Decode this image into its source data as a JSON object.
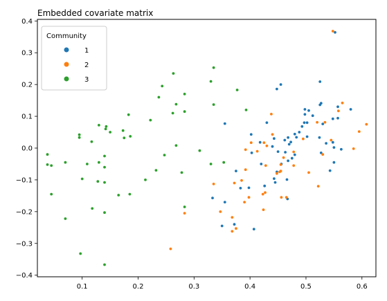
{
  "chart_data": {
    "type": "scatter",
    "title": "Embedded covariate matrix",
    "xlabel": "",
    "ylabel": "",
    "xlim": [
      0.02,
      0.625
    ],
    "ylim": [
      -0.405,
      0.405
    ],
    "x_ticks": [
      0.1,
      0.2,
      0.3,
      0.4,
      0.5,
      0.6
    ],
    "x_tick_labels": [
      "0.1",
      "0.2",
      "0.3",
      "0.4",
      "0.5",
      "0.6"
    ],
    "y_ticks": [
      -0.4,
      -0.3,
      -0.2,
      -0.1,
      0.0,
      0.1,
      0.2,
      0.3,
      0.4
    ],
    "y_tick_labels": [
      "−0.4",
      "−0.3",
      "−0.2",
      "−0.1",
      "0.0",
      "0.1",
      "0.2",
      "0.3",
      "0.4"
    ],
    "grid": false,
    "legend": {
      "title": "Community",
      "placement": "top-left",
      "entries": [
        "1",
        "2",
        "3"
      ]
    },
    "series": [
      {
        "name": "1",
        "color": "#1f77b4",
        "points": [
          [
            0.552,
            0.364
          ],
          [
            0.525,
            0.209
          ],
          [
            0.455,
            0.2
          ],
          [
            0.448,
            0.186
          ],
          [
            0.527,
            0.141
          ],
          [
            0.525,
            0.136
          ],
          [
            0.557,
            0.13
          ],
          [
            0.58,
            0.122
          ],
          [
            0.498,
            0.122
          ],
          [
            0.505,
            0.118
          ],
          [
            0.498,
            0.106
          ],
          [
            0.512,
            0.102
          ],
          [
            0.557,
            0.094
          ],
          [
            0.548,
            0.092
          ],
          [
            0.497,
            0.08
          ],
          [
            0.502,
            0.08
          ],
          [
            0.43,
            0.08
          ],
          [
            0.355,
            0.077
          ],
          [
            0.53,
            0.076
          ],
          [
            0.493,
            0.068
          ],
          [
            0.488,
            0.05
          ],
          [
            0.48,
            0.044
          ],
          [
            0.402,
            0.043
          ],
          [
            0.502,
            0.036
          ],
          [
            0.483,
            0.034
          ],
          [
            0.524,
            0.033
          ],
          [
            0.468,
            0.033
          ],
          [
            0.443,
            0.03
          ],
          [
            0.462,
            0.025
          ],
          [
            0.473,
            0.019
          ],
          [
            0.418,
            0.018
          ],
          [
            0.548,
            0.018
          ],
          [
            0.536,
            0.015
          ],
          [
            0.47,
            0.012
          ],
          [
            0.44,
            0.005
          ],
          [
            0.55,
            0.002
          ],
          [
            0.563,
            -0.004
          ],
          [
            0.45,
            -0.011
          ],
          [
            0.463,
            -0.013
          ],
          [
            0.403,
            -0.015
          ],
          [
            0.527,
            -0.015
          ],
          [
            0.48,
            -0.021
          ],
          [
            0.475,
            -0.032
          ],
          [
            0.468,
            -0.04
          ],
          [
            0.55,
            -0.045
          ],
          [
            0.456,
            -0.05
          ],
          [
            0.42,
            -0.05
          ],
          [
            0.543,
            -0.071
          ],
          [
            0.375,
            -0.072
          ],
          [
            0.448,
            -0.075
          ],
          [
            0.443,
            -0.096
          ],
          [
            0.466,
            -0.099
          ],
          [
            0.445,
            -0.108
          ],
          [
            0.426,
            -0.119
          ],
          [
            0.398,
            -0.125
          ],
          [
            0.383,
            -0.126
          ],
          [
            0.333,
            -0.157
          ],
          [
            0.467,
            -0.16
          ],
          [
            0.355,
            -0.17
          ],
          [
            0.372,
            -0.24
          ],
          [
            0.35,
            -0.245
          ],
          [
            0.407,
            -0.255
          ]
        ]
      },
      {
        "name": "2",
        "color": "#ff7f0e",
        "points": [
          [
            0.548,
            0.368
          ],
          [
            0.565,
            0.142
          ],
          [
            0.558,
            0.117
          ],
          [
            0.438,
            0.107
          ],
          [
            0.52,
            0.081
          ],
          [
            0.534,
            0.081
          ],
          [
            0.608,
            0.075
          ],
          [
            0.595,
            0.052
          ],
          [
            0.44,
            0.043
          ],
          [
            0.495,
            0.029
          ],
          [
            0.545,
            0.025
          ],
          [
            0.402,
            0.017
          ],
          [
            0.425,
            0.017
          ],
          [
            0.43,
            0.007
          ],
          [
            0.585,
            -0.002
          ],
          [
            0.392,
            -0.005
          ],
          [
            0.413,
            -0.01
          ],
          [
            0.478,
            -0.012
          ],
          [
            0.53,
            -0.02
          ],
          [
            0.46,
            -0.03
          ],
          [
            0.455,
            -0.052
          ],
          [
            0.428,
            -0.055
          ],
          [
            0.478,
            -0.055
          ],
          [
            0.392,
            -0.068
          ],
          [
            0.455,
            -0.072
          ],
          [
            0.453,
            -0.075
          ],
          [
            0.448,
            -0.08
          ],
          [
            0.505,
            -0.077
          ],
          [
            0.522,
            -0.12
          ],
          [
            0.385,
            -0.102
          ],
          [
            0.335,
            -0.113
          ],
          [
            0.427,
            -0.14
          ],
          [
            0.423,
            -0.145
          ],
          [
            0.465,
            -0.155
          ],
          [
            0.456,
            -0.155
          ],
          [
            0.372,
            -0.11
          ],
          [
            0.398,
            -0.155
          ],
          [
            0.39,
            -0.17
          ],
          [
            0.424,
            -0.194
          ],
          [
            0.283,
            -0.205
          ],
          [
            0.347,
            -0.2
          ],
          [
            0.368,
            -0.218
          ],
          [
            0.375,
            -0.253
          ],
          [
            0.368,
            -0.262
          ],
          [
            0.258,
            -0.317
          ]
        ]
      },
      {
        "name": "3",
        "color": "#2ca02c",
        "points": [
          [
            0.335,
            0.253
          ],
          [
            0.263,
            0.235
          ],
          [
            0.243,
            0.195
          ],
          [
            0.33,
            0.21
          ],
          [
            0.237,
            0.16
          ],
          [
            0.283,
            0.17
          ],
          [
            0.377,
            0.183
          ],
          [
            0.335,
            0.137
          ],
          [
            0.268,
            0.138
          ],
          [
            0.393,
            0.12
          ],
          [
            0.283,
            0.115
          ],
          [
            0.262,
            0.11
          ],
          [
            0.183,
            0.105
          ],
          [
            0.222,
            0.088
          ],
          [
            0.143,
            0.068
          ],
          [
            0.13,
            0.072
          ],
          [
            0.142,
            0.06
          ],
          [
            0.173,
            0.055
          ],
          [
            0.15,
            0.05
          ],
          [
            0.175,
            0.032
          ],
          [
            0.186,
            0.037
          ],
          [
            0.095,
            0.042
          ],
          [
            0.095,
            0.033
          ],
          [
            0.117,
            0.02
          ],
          [
            0.268,
            0.008
          ],
          [
            0.31,
            -0.008
          ],
          [
            0.038,
            -0.02
          ],
          [
            0.14,
            -0.025
          ],
          [
            0.247,
            -0.022
          ],
          [
            0.353,
            -0.045
          ],
          [
            0.07,
            -0.045
          ],
          [
            0.13,
            -0.045
          ],
          [
            0.109,
            -0.05
          ],
          [
            0.038,
            -0.052
          ],
          [
            0.33,
            -0.05
          ],
          [
            0.045,
            -0.055
          ],
          [
            0.14,
            -0.06
          ],
          [
            0.232,
            -0.07
          ],
          [
            0.278,
            -0.077
          ],
          [
            0.1,
            -0.097
          ],
          [
            0.213,
            -0.1
          ],
          [
            0.128,
            -0.105
          ],
          [
            0.14,
            -0.108
          ],
          [
            0.045,
            -0.145
          ],
          [
            0.165,
            -0.148
          ],
          [
            0.185,
            -0.145
          ],
          [
            0.118,
            -0.19
          ],
          [
            0.283,
            -0.185
          ],
          [
            0.14,
            -0.203
          ],
          [
            0.07,
            -0.222
          ],
          [
            0.097,
            -0.332
          ],
          [
            0.14,
            -0.367
          ]
        ]
      }
    ]
  }
}
